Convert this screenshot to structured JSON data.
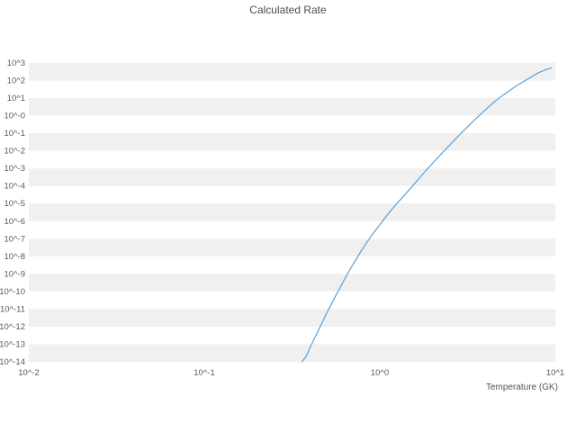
{
  "title": "Calculated Rate",
  "chart_data": {
    "type": "line",
    "title": "Calculated Rate",
    "xlabel": "Temperature (GK)",
    "ylabel": "",
    "xscale": "log",
    "yscale": "log",
    "xlim": [
      0.01,
      10
    ],
    "ylim": [
      1e-14,
      1000
    ],
    "grid": "horizontal-bands",
    "legend": "none",
    "line_color": "#5ca0d8",
    "band_colors": [
      "#f0f0f0",
      "#ffffff"
    ],
    "x_tick_labels": [
      "10^-2",
      "10^-1",
      "10^0",
      "10^1"
    ],
    "y_tick_labels": [
      "10^3",
      "10^2",
      "10^1",
      "10^-0",
      "10^-1",
      "10^-2",
      "10^-3",
      "10^-4",
      "10^-5",
      "10^-6",
      "10^-7",
      "10^-8",
      "10^-9",
      "10^-10",
      "10^-11",
      "10^-12",
      "10^-13",
      "10^-14"
    ],
    "series": [
      {
        "name": "calculated-rate",
        "x": [
          0.36,
          0.38,
          0.4,
          0.43,
          0.46,
          0.5,
          0.55,
          0.6,
          0.65,
          0.7,
          0.8,
          0.9,
          1.0,
          1.1,
          1.2,
          1.4,
          1.6,
          1.8,
          2.0,
          2.3,
          2.6,
          3.0,
          3.5,
          4.0,
          4.5,
          5.0,
          6.0,
          7.0,
          8.0,
          9.0,
          9.5
        ],
        "y": [
          1e-14,
          2e-14,
          6.3e-14,
          2.8e-13,
          1.1e-12,
          6.3e-12,
          4e-11,
          2e-10,
          8.9e-10,
          3.2e-09,
          2.8e-08,
          1.6e-07,
          6.3e-07,
          2.2e-06,
          6.3e-06,
          3.5e-05,
          0.00016,
          0.00063,
          0.002,
          0.0089,
          0.032,
          0.14,
          0.63,
          2.2,
          6.3,
          14,
          50,
          126,
          280,
          450,
          530
        ]
      }
    ]
  }
}
